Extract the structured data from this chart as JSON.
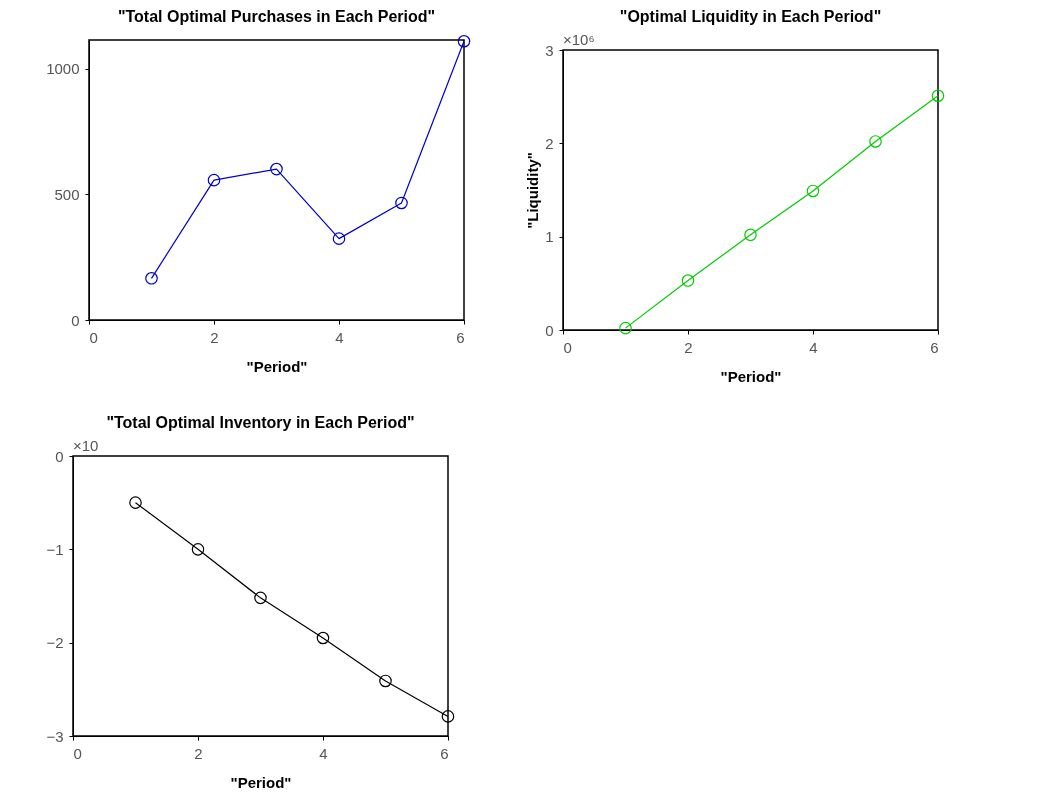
{
  "chart_data": [
    {
      "type": "line",
      "title": "\"Total Optimal Purchases in Each Period\"",
      "xlabel": "\"Period\"",
      "x": [
        1,
        2,
        3,
        4,
        5,
        6
      ],
      "series": [
        {
          "color": "#0000cc",
          "values": [
            166,
            557,
            601,
            324,
            466,
            1110
          ]
        }
      ],
      "xlim": [
        0,
        6
      ],
      "xticks": [
        0,
        2,
        4,
        6
      ],
      "ylim": [
        0,
        1115
      ],
      "yticks": [
        0,
        500,
        1000
      ],
      "marker": "circle",
      "line_style": "solid"
    },
    {
      "type": "line",
      "title": "\"Optimal Liquidity in Each Period\"",
      "xlabel": "\"Period\"",
      "ylabel": "\"Liquidity\"",
      "x": [
        1,
        2,
        3,
        4,
        5,
        6
      ],
      "series": [
        {
          "color": "#00cc00",
          "values": [
            0.02,
            0.53,
            1.02,
            1.49,
            2.02,
            2.51
          ]
        }
      ],
      "xlim": [
        0,
        6
      ],
      "xticks": [
        0,
        2,
        4,
        6
      ],
      "ylim": [
        0,
        3
      ],
      "yticks": [
        0,
        1,
        2,
        3
      ],
      "marker": "circle",
      "line_style": "solid",
      "annotations": [
        "×10⁶"
      ]
    },
    {
      "type": "line",
      "title": "\"Total Optimal Inventory in Each Period\"",
      "xlabel": "\"Period\"",
      "x": [
        1,
        2,
        3,
        4,
        5,
        6
      ],
      "series": [
        {
          "color": "#000000",
          "values": [
            -0.5,
            -1.0,
            -1.52,
            -1.95,
            -2.41,
            -2.79
          ]
        }
      ],
      "xlim": [
        0,
        6
      ],
      "xticks": [
        0,
        2,
        4,
        6
      ],
      "ylim": [
        -3,
        0
      ],
      "yticks": [
        -3,
        -2,
        -1,
        0
      ],
      "marker": "circle",
      "line_style": "solid",
      "annotations": [
        "×10"
      ]
    }
  ]
}
